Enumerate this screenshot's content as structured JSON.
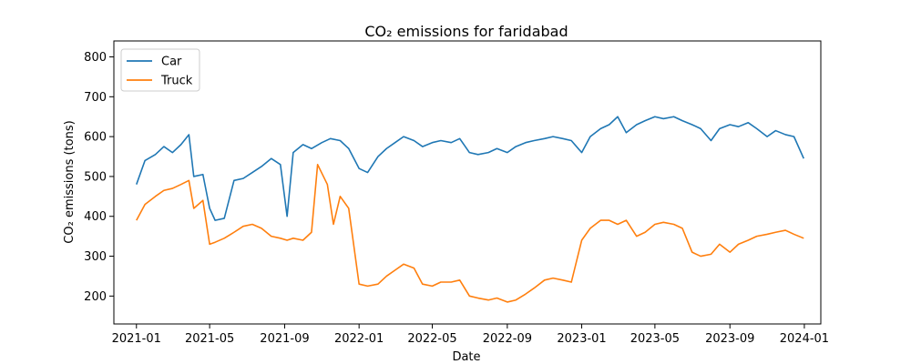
{
  "chart_data": {
    "type": "line",
    "title": "CO₂ emissions for faridabad",
    "xlabel": "Date",
    "ylabel": "CO₂ emissions (tons)",
    "x_ticks": [
      "2021-01",
      "2021-05",
      "2021-09",
      "2022-01",
      "2022-05",
      "2022-09",
      "2023-01",
      "2023-05",
      "2023-09",
      "2024-01"
    ],
    "y_ticks": [
      200,
      300,
      400,
      500,
      600,
      700,
      800
    ],
    "ylim": [
      130,
      840
    ],
    "xlim": [
      "2020-11-25",
      "2024-01-28"
    ],
    "grid": false,
    "legend_position": "top-left",
    "series": [
      {
        "name": "Car",
        "color": "#1f77b4",
        "points": [
          [
            "2021-01-01",
            480
          ],
          [
            "2021-01-15",
            540
          ],
          [
            "2021-02-01",
            555
          ],
          [
            "2021-02-15",
            575
          ],
          [
            "2021-03-01",
            560
          ],
          [
            "2021-03-15",
            580
          ],
          [
            "2021-03-28",
            605
          ],
          [
            "2021-04-05",
            500
          ],
          [
            "2021-04-20",
            505
          ],
          [
            "2021-05-01",
            420
          ],
          [
            "2021-05-10",
            390
          ],
          [
            "2021-05-25",
            395
          ],
          [
            "2021-06-10",
            490
          ],
          [
            "2021-06-25",
            495
          ],
          [
            "2021-07-10",
            510
          ],
          [
            "2021-07-25",
            525
          ],
          [
            "2021-08-10",
            545
          ],
          [
            "2021-08-25",
            530
          ],
          [
            "2021-09-05",
            400
          ],
          [
            "2021-09-15",
            560
          ],
          [
            "2021-10-01",
            580
          ],
          [
            "2021-10-15",
            570
          ],
          [
            "2021-11-01",
            585
          ],
          [
            "2021-11-15",
            595
          ],
          [
            "2021-12-01",
            590
          ],
          [
            "2021-12-15",
            570
          ],
          [
            "2022-01-01",
            520
          ],
          [
            "2022-01-15",
            510
          ],
          [
            "2022-02-01",
            550
          ],
          [
            "2022-02-15",
            570
          ],
          [
            "2022-03-01",
            585
          ],
          [
            "2022-03-15",
            600
          ],
          [
            "2022-04-01",
            590
          ],
          [
            "2022-04-15",
            575
          ],
          [
            "2022-05-01",
            585
          ],
          [
            "2022-05-15",
            590
          ],
          [
            "2022-06-01",
            585
          ],
          [
            "2022-06-15",
            595
          ],
          [
            "2022-07-01",
            560
          ],
          [
            "2022-07-15",
            555
          ],
          [
            "2022-08-01",
            560
          ],
          [
            "2022-08-15",
            570
          ],
          [
            "2022-09-01",
            560
          ],
          [
            "2022-09-15",
            575
          ],
          [
            "2022-10-01",
            585
          ],
          [
            "2022-10-15",
            590
          ],
          [
            "2022-11-01",
            595
          ],
          [
            "2022-11-15",
            600
          ],
          [
            "2022-12-01",
            595
          ],
          [
            "2022-12-15",
            590
          ],
          [
            "2023-01-01",
            560
          ],
          [
            "2023-01-15",
            600
          ],
          [
            "2023-02-01",
            620
          ],
          [
            "2023-02-15",
            630
          ],
          [
            "2023-03-01",
            650
          ],
          [
            "2023-03-15",
            610
          ],
          [
            "2023-04-01",
            630
          ],
          [
            "2023-04-15",
            640
          ],
          [
            "2023-05-01",
            650
          ],
          [
            "2023-05-15",
            645
          ],
          [
            "2023-06-01",
            650
          ],
          [
            "2023-06-15",
            640
          ],
          [
            "2023-07-01",
            630
          ],
          [
            "2023-07-15",
            620
          ],
          [
            "2023-08-01",
            590
          ],
          [
            "2023-08-15",
            620
          ],
          [
            "2023-09-01",
            630
          ],
          [
            "2023-09-15",
            625
          ],
          [
            "2023-10-01",
            635
          ],
          [
            "2023-10-15",
            620
          ],
          [
            "2023-11-01",
            600
          ],
          [
            "2023-11-15",
            615
          ],
          [
            "2023-12-01",
            605
          ],
          [
            "2023-12-15",
            600
          ],
          [
            "2023-12-31",
            545
          ]
        ]
      },
      {
        "name": "Truck",
        "color": "#ff7f0e",
        "points": [
          [
            "2021-01-01",
            390
          ],
          [
            "2021-01-15",
            430
          ],
          [
            "2021-02-01",
            450
          ],
          [
            "2021-02-15",
            465
          ],
          [
            "2021-03-01",
            470
          ],
          [
            "2021-03-15",
            480
          ],
          [
            "2021-03-28",
            490
          ],
          [
            "2021-04-05",
            420
          ],
          [
            "2021-04-20",
            440
          ],
          [
            "2021-05-01",
            330
          ],
          [
            "2021-05-10",
            335
          ],
          [
            "2021-05-25",
            345
          ],
          [
            "2021-06-10",
            360
          ],
          [
            "2021-06-25",
            375
          ],
          [
            "2021-07-10",
            380
          ],
          [
            "2021-07-25",
            370
          ],
          [
            "2021-08-10",
            350
          ],
          [
            "2021-08-25",
            345
          ],
          [
            "2021-09-05",
            340
          ],
          [
            "2021-09-15",
            345
          ],
          [
            "2021-10-01",
            340
          ],
          [
            "2021-10-15",
            360
          ],
          [
            "2021-10-25",
            530
          ],
          [
            "2021-11-10",
            480
          ],
          [
            "2021-11-20",
            380
          ],
          [
            "2021-12-01",
            450
          ],
          [
            "2021-12-15",
            420
          ],
          [
            "2022-01-01",
            230
          ],
          [
            "2022-01-15",
            225
          ],
          [
            "2022-02-01",
            230
          ],
          [
            "2022-02-15",
            250
          ],
          [
            "2022-03-01",
            265
          ],
          [
            "2022-03-15",
            280
          ],
          [
            "2022-04-01",
            270
          ],
          [
            "2022-04-15",
            230
          ],
          [
            "2022-05-01",
            225
          ],
          [
            "2022-05-15",
            235
          ],
          [
            "2022-06-01",
            235
          ],
          [
            "2022-06-15",
            240
          ],
          [
            "2022-07-01",
            200
          ],
          [
            "2022-07-15",
            195
          ],
          [
            "2022-08-01",
            190
          ],
          [
            "2022-08-15",
            195
          ],
          [
            "2022-09-01",
            185
          ],
          [
            "2022-09-15",
            190
          ],
          [
            "2022-10-01",
            205
          ],
          [
            "2022-10-15",
            220
          ],
          [
            "2022-11-01",
            240
          ],
          [
            "2022-11-15",
            245
          ],
          [
            "2022-12-01",
            240
          ],
          [
            "2022-12-15",
            235
          ],
          [
            "2023-01-01",
            340
          ],
          [
            "2023-01-15",
            370
          ],
          [
            "2023-02-01",
            390
          ],
          [
            "2023-02-15",
            390
          ],
          [
            "2023-03-01",
            380
          ],
          [
            "2023-03-15",
            390
          ],
          [
            "2023-04-01",
            350
          ],
          [
            "2023-04-15",
            360
          ],
          [
            "2023-05-01",
            380
          ],
          [
            "2023-05-15",
            385
          ],
          [
            "2023-06-01",
            380
          ],
          [
            "2023-06-15",
            370
          ],
          [
            "2023-07-01",
            310
          ],
          [
            "2023-07-15",
            300
          ],
          [
            "2023-08-01",
            305
          ],
          [
            "2023-08-15",
            330
          ],
          [
            "2023-09-01",
            310
          ],
          [
            "2023-09-15",
            330
          ],
          [
            "2023-10-01",
            340
          ],
          [
            "2023-10-15",
            350
          ],
          [
            "2023-11-01",
            355
          ],
          [
            "2023-11-15",
            360
          ],
          [
            "2023-12-01",
            365
          ],
          [
            "2023-12-15",
            355
          ],
          [
            "2023-12-31",
            345
          ]
        ]
      }
    ]
  }
}
